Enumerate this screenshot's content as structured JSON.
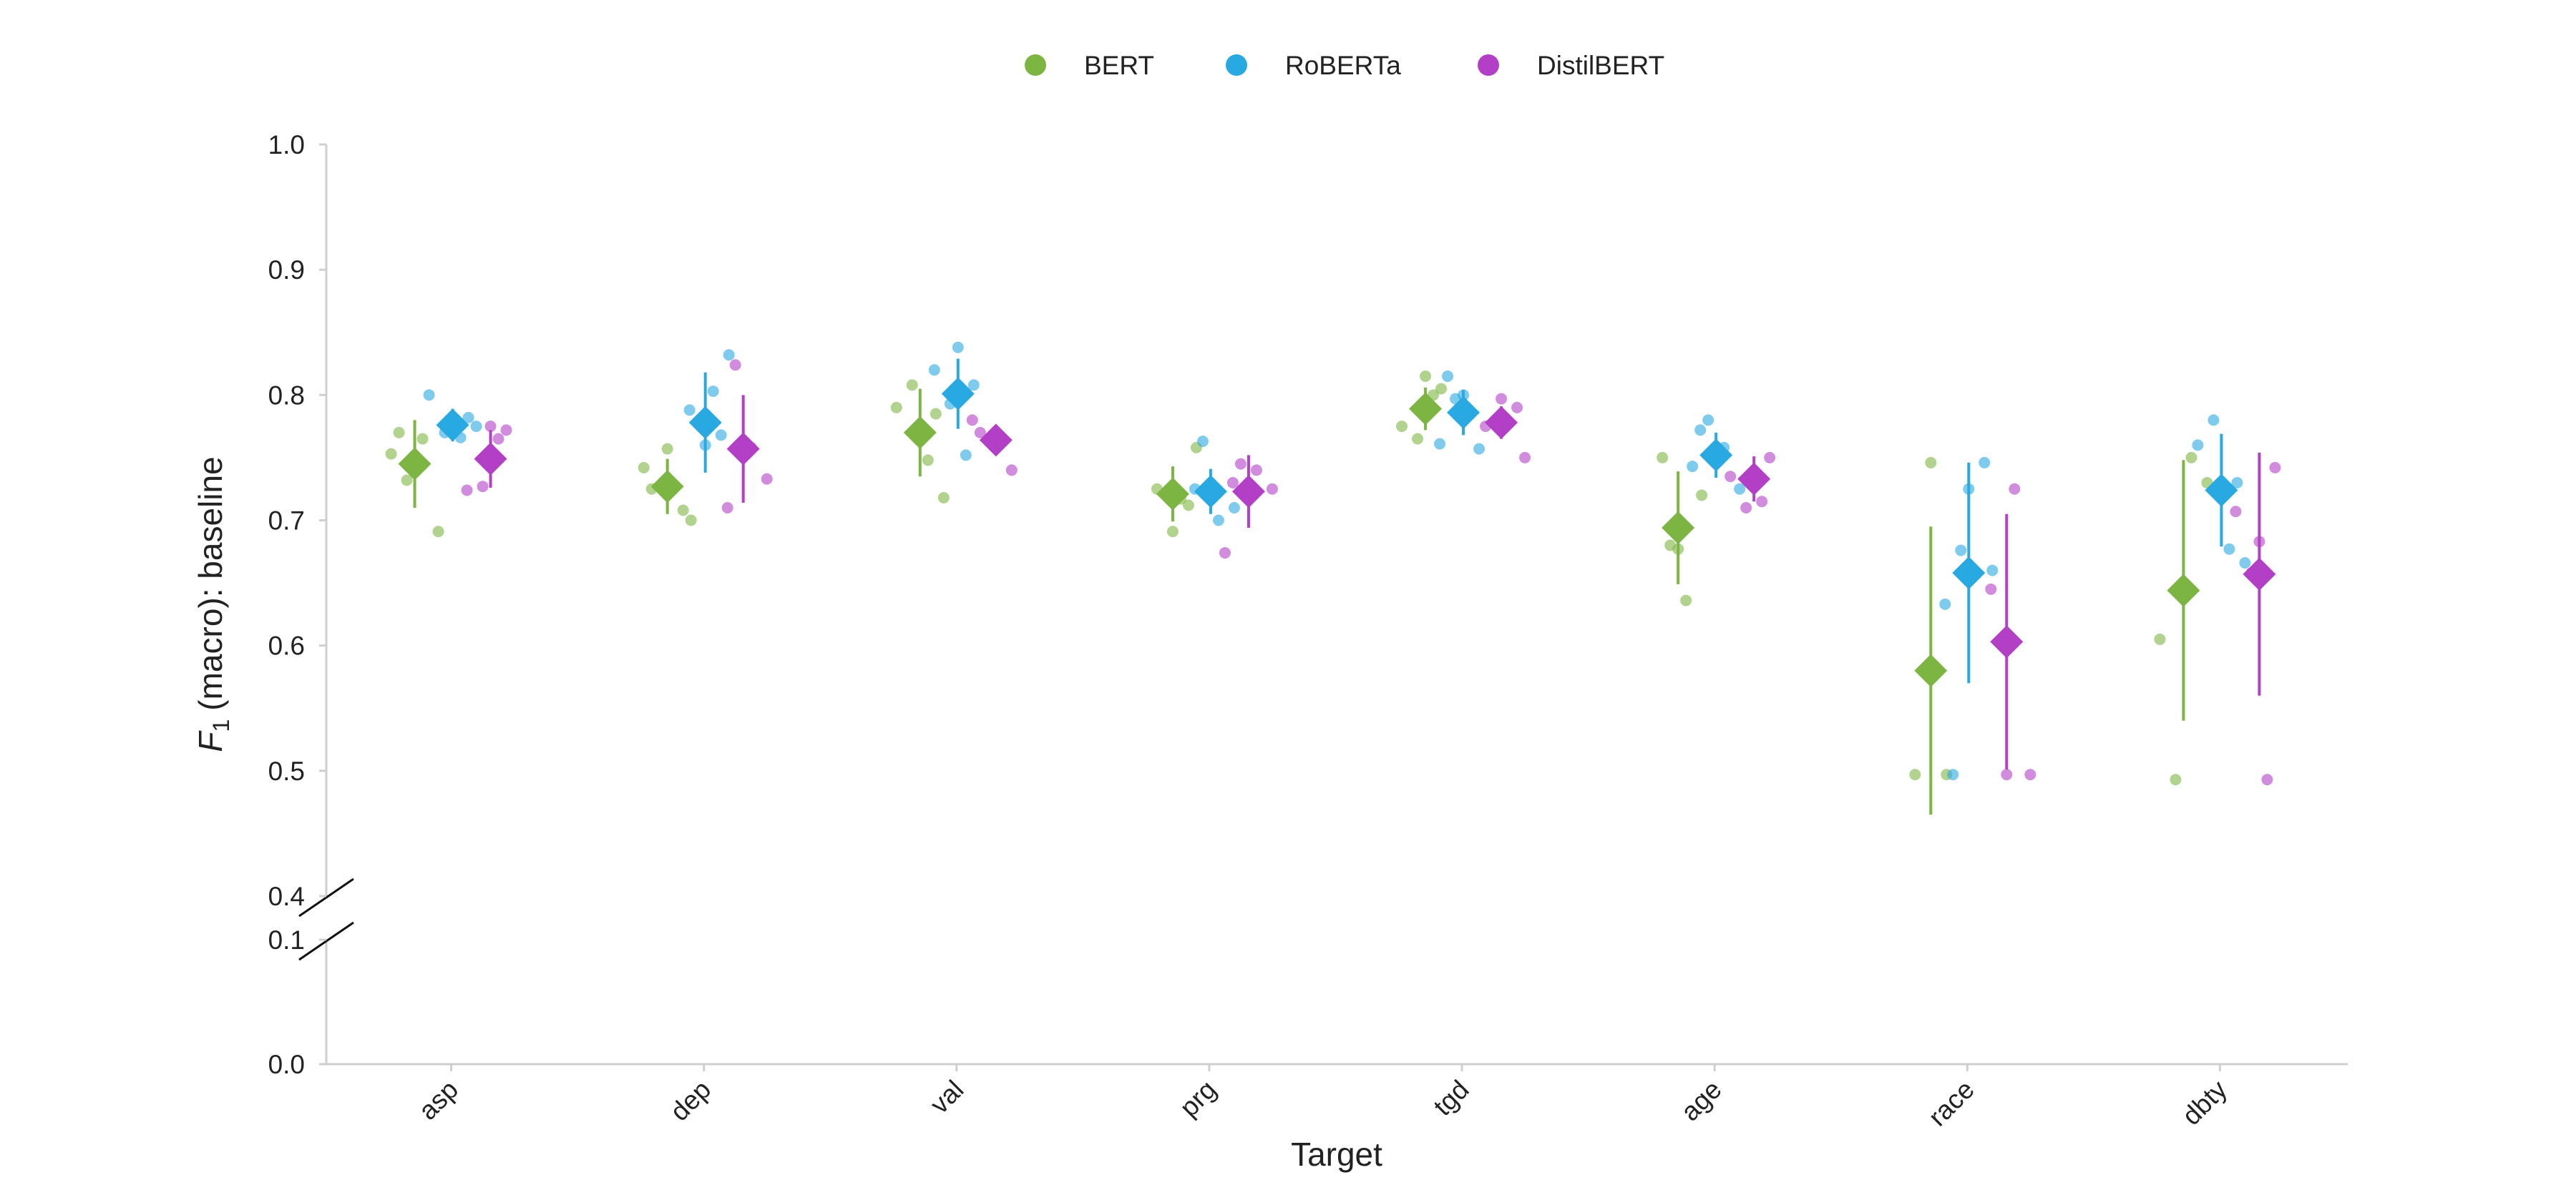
{
  "chart_data": {
    "type": "dot_errorbar",
    "x_label": "Target",
    "y_label": {
      "symbol": "F",
      "subscript": "1",
      "text": "(macro): baseline"
    },
    "categories": [
      "asp",
      "dep",
      "val",
      "prg",
      "tgd",
      "age",
      "race",
      "dbty"
    ],
    "ylim": [
      0,
      1
    ],
    "ybreak": [
      0.1,
      0.4
    ],
    "yticks": [
      {
        "value": 0,
        "label": "0.0"
      },
      0.1,
      0.4,
      0.5,
      0.6,
      0.7,
      0.8,
      0.9,
      {
        "value": 1,
        "label": "1.0"
      }
    ],
    "legend": "top",
    "series": [
      {
        "name": "BERT",
        "color": "#7db543",
        "values": [
          0.745,
          0.727,
          0.77,
          0.721,
          0.789,
          0.694,
          0.58,
          0.644
        ],
        "errors": [
          0.035,
          0.022,
          0.035,
          0.022,
          0.017,
          0.045,
          0.115,
          0.104
        ],
        "points": [
          [
            0.753,
            0.732,
            0.765,
            0.691,
            0.77
          ],
          [
            0.7,
            0.725,
            0.757,
            0.708,
            0.742
          ],
          [
            0.785,
            0.79,
            0.808,
            0.748,
            0.718
          ],
          [
            0.717,
            0.758,
            0.725,
            0.691,
            0.712
          ],
          [
            0.815,
            0.805,
            0.775,
            0.765,
            0.8
          ],
          [
            0.68,
            0.636,
            0.72,
            0.75,
            0.677
          ],
          [
            0.497,
            0.746,
            0.497
          ],
          [
            0.605,
            0.493,
            0.75,
            0.73
          ]
        ]
      },
      {
        "name": "RoBERTa",
        "color": "#29a9e1",
        "values": [
          0.776,
          0.778,
          0.801,
          0.723,
          0.786,
          0.752,
          0.658,
          0.724
        ],
        "errors": [
          0.013,
          0.04,
          0.028,
          0.018,
          0.018,
          0.018,
          0.088,
          0.045
        ],
        "points": [
          [
            0.782,
            0.8,
            0.77,
            0.766,
            0.775
          ],
          [
            0.803,
            0.832,
            0.788,
            0.76,
            0.768
          ],
          [
            0.838,
            0.808,
            0.82,
            0.793,
            0.752
          ],
          [
            0.763,
            0.7,
            0.71,
            0.725,
            0.72
          ],
          [
            0.815,
            0.8,
            0.757,
            0.761,
            0.797
          ],
          [
            0.743,
            0.78,
            0.758,
            0.725,
            0.772
          ],
          [
            0.66,
            0.497,
            0.725,
            0.746,
            0.633,
            0.676
          ],
          [
            0.73,
            0.76,
            0.78,
            0.677,
            0.666
          ]
        ]
      },
      {
        "name": "DistilBERT",
        "color": "#b43fc7",
        "values": [
          0.749,
          0.757,
          0.764,
          0.723,
          0.778,
          0.733,
          0.603,
          0.657
        ],
        "errors": [
          0.023,
          0.043,
          0.01,
          0.029,
          0.013,
          0.018,
          0.102,
          0.097
        ],
        "points": [
          [
            0.775,
            0.772,
            0.724,
            0.727,
            0.765
          ],
          [
            0.824,
            0.758,
            0.733,
            0.71,
            0.763
          ],
          [
            0.77,
            0.762,
            0.74,
            0.78
          ],
          [
            0.674,
            0.745,
            0.74,
            0.725,
            0.73
          ],
          [
            0.75,
            0.775,
            0.797,
            0.79
          ],
          [
            0.75,
            0.735,
            0.71,
            0.715
          ],
          [
            0.725,
            0.497,
            0.645,
            0.497
          ],
          [
            0.683,
            0.742,
            0.707,
            0.658,
            0.493
          ]
        ]
      }
    ]
  }
}
